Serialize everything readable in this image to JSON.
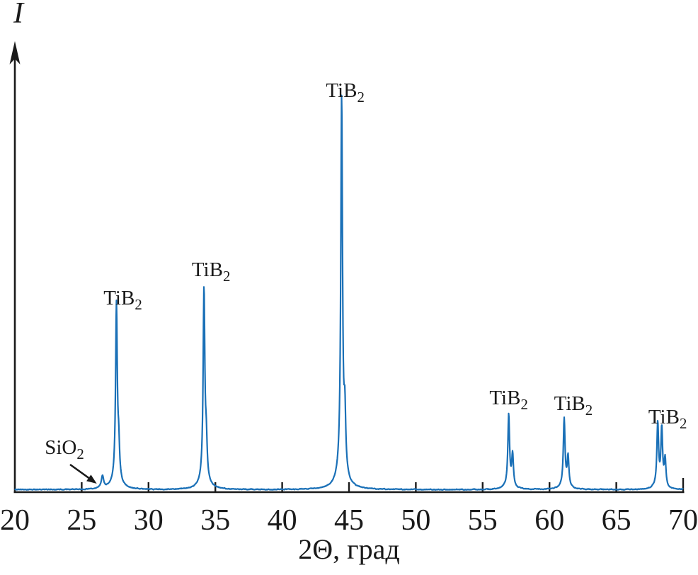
{
  "figure": {
    "background": "#ffffff",
    "description": "X-ray diffraction pattern of TiB2 powder with a minor SiO2 impurity peak"
  },
  "chart_data": {
    "type": "line",
    "title": "",
    "xlabel": "2Θ, град",
    "ylabel": "I",
    "xlim": [
      20,
      70
    ],
    "x_ticks": [
      20,
      25,
      30,
      35,
      40,
      45,
      50,
      55,
      60,
      65,
      70
    ],
    "y_axis": "unlabeled intensity axis with arrow",
    "grid": false,
    "legend": "none",
    "line_color": "#1a70b7",
    "axis_color": "#1a1a1a",
    "series_name": "XRD intensity trace",
    "peaks": [
      {
        "two_theta": 26.55,
        "rel_intensity": 0.032,
        "phase": "SiO2",
        "label": {
          "base": "SiO",
          "sub": "2"
        },
        "annotated_with_arrow": true,
        "gamma": 0.1,
        "components": [
          {
            "offset": 0,
            "amp": 1
          }
        ]
      },
      {
        "two_theta": 27.6,
        "rel_intensity": 0.47,
        "phase": "TiB2",
        "label": {
          "base": "TiB",
          "sub": "2"
        },
        "gamma": 0.075,
        "components": [
          {
            "offset": 0,
            "amp": 1
          },
          {
            "offset": 0.17,
            "amp": 0.18
          }
        ],
        "label_dx": 9,
        "label_dy": 9
      },
      {
        "two_theta": 34.15,
        "rel_intensity": 0.51,
        "phase": "TiB2",
        "label": {
          "base": "TiB",
          "sub": "2"
        },
        "gamma": 0.075,
        "components": [
          {
            "offset": 0,
            "amp": 1
          },
          {
            "offset": 0.17,
            "amp": 0.18
          }
        ],
        "label_dx": 10,
        "label_dy": -10
      },
      {
        "two_theta": 44.45,
        "rel_intensity": 1.0,
        "phase": "TiB2",
        "label": {
          "base": "TiB",
          "sub": "2"
        },
        "gamma": 0.075,
        "components": [
          {
            "offset": 0,
            "amp": 1
          },
          {
            "offset": 0.24,
            "amp": 0.15
          }
        ],
        "label_dx": 5,
        "label_dy": -5
      },
      {
        "two_theta": 56.95,
        "rel_intensity": 0.19,
        "phase": "TiB2",
        "label": {
          "base": "TiB",
          "sub": "2"
        },
        "gamma": 0.075,
        "components": [
          {
            "offset": 0,
            "amp": 1
          },
          {
            "offset": 0.29,
            "amp": 0.45
          }
        ],
        "label_dx": 0,
        "label_dy": 3
      },
      {
        "two_theta": 61.1,
        "rel_intensity": 0.18,
        "phase": "TiB2",
        "label": {
          "base": "TiB",
          "sub": "2"
        },
        "gamma": 0.075,
        "components": [
          {
            "offset": 0,
            "amp": 1
          },
          {
            "offset": 0.29,
            "amp": 0.45
          }
        ],
        "label_dx": 13,
        "label_dy": 5
      },
      {
        "two_theta": 68.1,
        "rel_intensity": 0.167,
        "phase": "TiB2",
        "label": {
          "base": "TiB",
          "sub": "2"
        },
        "gamma": 0.075,
        "components": [
          {
            "offset": 0,
            "amp": 1
          },
          {
            "offset": 0.3,
            "amp": 0.93
          },
          {
            "offset": 0.55,
            "amp": 0.45
          }
        ],
        "label_dx": 14,
        "label_dy": 18
      }
    ],
    "annotation": {
      "text": {
        "base": "SiO",
        "sub": "2"
      },
      "points_to_two_theta": 26.55
    }
  }
}
